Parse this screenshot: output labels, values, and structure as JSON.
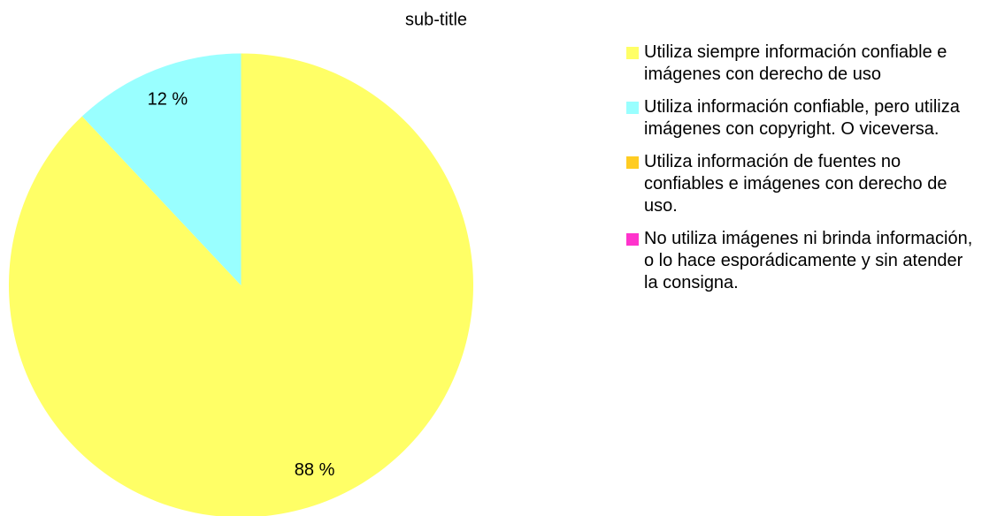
{
  "chart_data": {
    "type": "pie",
    "title": "sub-title",
    "categories": [
      "Utiliza siempre información confiable e imágenes con derecho de uso",
      "Utiliza información confiable, pero utiliza imágenes con copyright. O viceversa.",
      "Utiliza información de fuentes no confiables e imágenes con derecho de uso.",
      "No utiliza imágenes ni brinda información, o lo hace esporádicamente y sin atender la consigna."
    ],
    "values": [
      88,
      12,
      0,
      0
    ],
    "value_labels": [
      "88 %",
      "12 %",
      null,
      null
    ],
    "colors": [
      "#ffff66",
      "#99ffff",
      "#ffcc22",
      "#ff33cc"
    ],
    "legend": "right"
  }
}
